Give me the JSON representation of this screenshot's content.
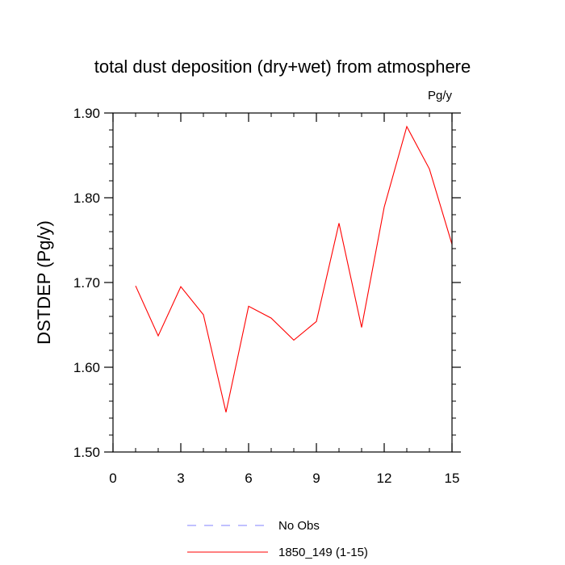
{
  "chart_data": {
    "type": "line",
    "title": "total dust deposition (dry+wet) from atmosphere",
    "units_label": "Pg/y",
    "ylabel": "DSTDEP  (Pg/y)",
    "xlabel": "",
    "xlim": [
      0,
      15
    ],
    "ylim": [
      1.5,
      1.9
    ],
    "x_ticks": [
      0,
      3,
      6,
      9,
      12,
      15
    ],
    "x_tick_labels": [
      "0",
      "3",
      "6",
      "9",
      "12",
      "15"
    ],
    "y_ticks": [
      1.5,
      1.6,
      1.7,
      1.8,
      1.9
    ],
    "y_tick_labels": [
      "1.50",
      "1.60",
      "1.70",
      "1.80",
      "1.90"
    ],
    "grid": false,
    "legend_position": "bottom",
    "series": [
      {
        "name": "1850_149 (1-15)",
        "color": "#ff0000",
        "dash": "solid",
        "x": [
          1,
          2,
          3,
          4,
          5,
          6,
          7,
          8,
          9,
          10,
          11,
          12,
          13,
          14,
          15
        ],
        "y": [
          1.696,
          1.637,
          1.695,
          1.662,
          1.547,
          1.672,
          1.658,
          1.632,
          1.654,
          1.77,
          1.647,
          1.789,
          1.884,
          1.834,
          1.745
        ]
      }
    ],
    "legend": [
      {
        "label": "No Obs",
        "color": "#8080ff",
        "dash": "dashed"
      },
      {
        "label": "1850_149 (1-15)",
        "color": "#ff0000",
        "dash": "solid"
      }
    ]
  }
}
